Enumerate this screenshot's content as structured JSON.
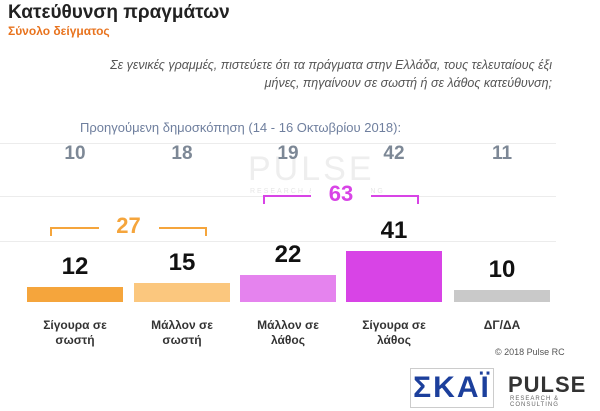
{
  "chart_data": {
    "type": "bar",
    "title": "Κατεύθυνση πραγμάτων",
    "subtitle": "Σύνολο δείγματος",
    "question": "Σε γενικές γραμμές, πιστεύετε ότι τα πράγματα στην Ελλάδα, τους τελευταίους έξι μήνες, πηγαίνουν σε σωστή ή σε λάθος κατεύθυνση;",
    "categories": [
      "Σίγουρα σε σωστή",
      "Μάλλον σε σωστή",
      "Μάλλον σε λάθος",
      "Σίγουρα σε λάθος",
      "ΔΓ/ΔΑ"
    ],
    "values": [
      12,
      15,
      22,
      41,
      10
    ],
    "colors": [
      "#f5a53c",
      "#fbc77e",
      "#e583ee",
      "#d844e6",
      "#c9c9c9"
    ],
    "previous": {
      "label": "Προηγούμενη δημοσκόπηση (14 - 16 Οκτωβρίου 2018):",
      "values": [
        10,
        18,
        19,
        42,
        11
      ]
    },
    "groups": [
      {
        "value": 27,
        "color": "#f5a53c"
      },
      {
        "value": 63,
        "color": "#d844e6"
      }
    ],
    "copyright": "© 2018 Pulse RC",
    "watermark": {
      "text": "PULSE",
      "tagline": "RESEARCH & CONSULTING"
    },
    "logos": {
      "skai": "ΣΚΑΪ",
      "pulse": "PULSE",
      "pulse_tagline": "RESEARCH & CONSULTING"
    }
  }
}
